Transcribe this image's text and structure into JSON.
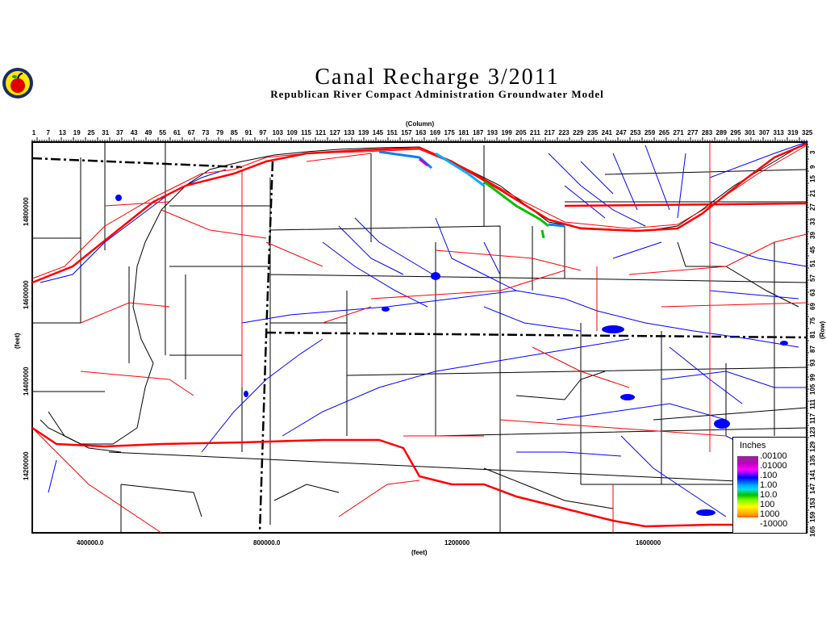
{
  "title": "Canal Recharge 3/2011",
  "subtitle": "Republican River Compact Administration Groundwater Model",
  "map": {
    "column_label": "(Column)",
    "row_label": "(Row)",
    "x_label": "(feet)",
    "y_label": "(feet)",
    "columns": [
      "1",
      "7",
      "13",
      "19",
      "25",
      "31",
      "37",
      "43",
      "49",
      "55",
      "61",
      "67",
      "73",
      "79",
      "85",
      "91",
      "97",
      "103",
      "109",
      "115",
      "121",
      "127",
      "133",
      "139",
      "145",
      "151",
      "157",
      "163",
      "169",
      "175",
      "181",
      "187",
      "193",
      "199",
      "205",
      "211",
      "217",
      "223",
      "229",
      "235",
      "241",
      "247",
      "253",
      "259",
      "265",
      "271",
      "277",
      "283",
      "289",
      "295",
      "301",
      "307",
      "313",
      "319",
      "325"
    ],
    "rows": [
      "3",
      "9",
      "15",
      "21",
      "27",
      "33",
      "39",
      "45",
      "51",
      "57",
      "63",
      "69",
      "75",
      "81",
      "87",
      "93",
      "99",
      "105",
      "111",
      "117",
      "123",
      "129",
      "135",
      "141",
      "147",
      "153",
      "159",
      "165"
    ],
    "x_ticks": [
      "400000.0",
      "800000.0",
      "1200000",
      "1600000"
    ],
    "y_ticks": [
      "14800000",
      "14600000",
      "14400000",
      "14200000"
    ]
  },
  "legend": {
    "title": "Inches",
    "values": [
      ".00100",
      ".01000",
      ".100",
      "1.00",
      "10.0",
      "100",
      "1000",
      "-10000"
    ],
    "colors": [
      "#c000c0",
      "#ff00ff",
      "#0000ff",
      "#00c0ff",
      "#00c000",
      "#ffff00",
      "#ff8000"
    ]
  }
}
